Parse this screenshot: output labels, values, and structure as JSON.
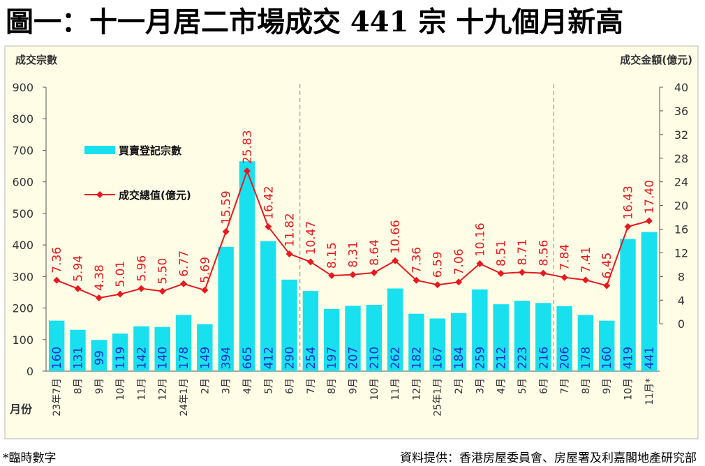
{
  "page": {
    "title": "圖一：十一月居二市場成交 441 宗  十九個月新高",
    "footnote": "*臨時數字",
    "source": "資料提供：香港房屋委員會、房屋署及利嘉閣地產研究部"
  },
  "chart_data": {
    "type": "bar",
    "title": "",
    "ylabel_left": "成交宗數",
    "ylabel_right": "成交金額(億元)",
    "xlabel": "月份",
    "ylim_left": [
      0,
      900
    ],
    "yticks_left": [
      "0",
      "100",
      "200",
      "300",
      "400",
      "500",
      "600",
      "700",
      "800",
      "900"
    ],
    "ylim_right": [
      -8,
      40
    ],
    "yticks_right": [
      "0",
      "4",
      "8",
      "12",
      "16",
      "20",
      "24",
      "28",
      "32",
      "36",
      "40"
    ],
    "categories": [
      "23年7月",
      "8月",
      "9月",
      "10月",
      "11月",
      "12月",
      "24年1月",
      "2月",
      "3月",
      "4月",
      "5月",
      "6月",
      "7月",
      "8月",
      "9月",
      "10月",
      "11月",
      "12月",
      "25年1月",
      "2月",
      "3月",
      "4月",
      "5月",
      "6月",
      "7月",
      "8月",
      "9月",
      "10月",
      "11月*"
    ],
    "separators_after_index": [
      11,
      23
    ],
    "series": [
      {
        "name": "買賣登記宗數",
        "kind": "bar",
        "axis": "left",
        "color": "#19e0ee",
        "values": [
          160,
          131,
          99,
          119,
          142,
          140,
          178,
          149,
          394,
          665,
          412,
          290,
          254,
          197,
          207,
          210,
          262,
          182,
          167,
          184,
          259,
          212,
          223,
          216,
          206,
          178,
          160,
          419,
          441
        ],
        "labels": [
          "160",
          "131",
          "99",
          "119",
          "142",
          "140",
          "178",
          "149",
          "394",
          "665",
          "412",
          "290",
          "254",
          "197",
          "207",
          "210",
          "262",
          "182",
          "167",
          "184",
          "259",
          "212",
          "223",
          "216",
          "206",
          "178",
          "160",
          "419",
          "441"
        ]
      },
      {
        "name": "成交總值(億元)",
        "kind": "line",
        "axis": "right",
        "color": "#e8191e",
        "values": [
          7.36,
          5.94,
          4.38,
          5.01,
          5.96,
          5.5,
          6.77,
          5.69,
          15.59,
          25.83,
          16.42,
          11.82,
          10.47,
          8.15,
          8.31,
          8.64,
          10.66,
          7.36,
          6.59,
          7.06,
          10.16,
          8.51,
          8.71,
          8.56,
          7.84,
          7.41,
          6.45,
          16.43,
          17.4
        ],
        "labels": [
          "7.36",
          "5.94",
          "4.38",
          "5.01",
          "5.96",
          "5.50",
          "6.77",
          "5.69",
          "15.59",
          "25.83",
          "16.42",
          "11.82",
          "10.47",
          "8.15",
          "8.31",
          "8.64",
          "10.66",
          "7.36",
          "6.59",
          "7.06",
          "10.16",
          "8.51",
          "8.71",
          "8.56",
          "7.84",
          "7.41",
          "6.45",
          "16.43",
          "17.40"
        ]
      }
    ],
    "colors": {
      "background": "#fffde6",
      "border": "#b8b8b8",
      "axis_text": "#333333",
      "bar_label": "#1a2fd0",
      "separator": "#888888"
    }
  }
}
